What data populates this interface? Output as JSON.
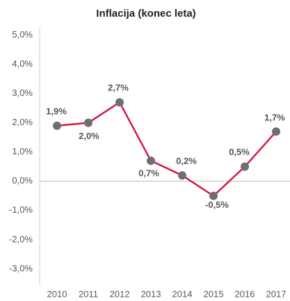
{
  "chart_data": {
    "type": "line",
    "title": "Inflacija (konec leta)",
    "categories": [
      "2010",
      "2011",
      "2012",
      "2013",
      "2014",
      "2015",
      "2016",
      "2017"
    ],
    "series": [
      {
        "name": "Inflacija",
        "color": "#d7193f",
        "marker_color": "#6f6f6f",
        "values": [
          1.9,
          2.0,
          2.7,
          0.7,
          0.2,
          -0.5,
          0.5,
          1.7
        ],
        "value_labels": [
          "1,9%",
          "2,0%",
          "2,7%",
          "0,7%",
          "0,2%",
          "-0,5%",
          "0,5%",
          "1,7%"
        ]
      }
    ],
    "ylim": [
      -3.55,
      5.25
    ],
    "yticks": [
      {
        "value": -3,
        "label": "-3,0%"
      },
      {
        "value": -2,
        "label": "-2,0%"
      },
      {
        "value": -1,
        "label": "-1,0%"
      },
      {
        "value": 0,
        "label": "0,0%"
      },
      {
        "value": 1,
        "label": "1,0%"
      },
      {
        "value": 2,
        "label": "2,0%"
      },
      {
        "value": 3,
        "label": "3,0%"
      },
      {
        "value": 4,
        "label": "4,0%"
      },
      {
        "value": 5,
        "label": "5,0%"
      }
    ]
  }
}
